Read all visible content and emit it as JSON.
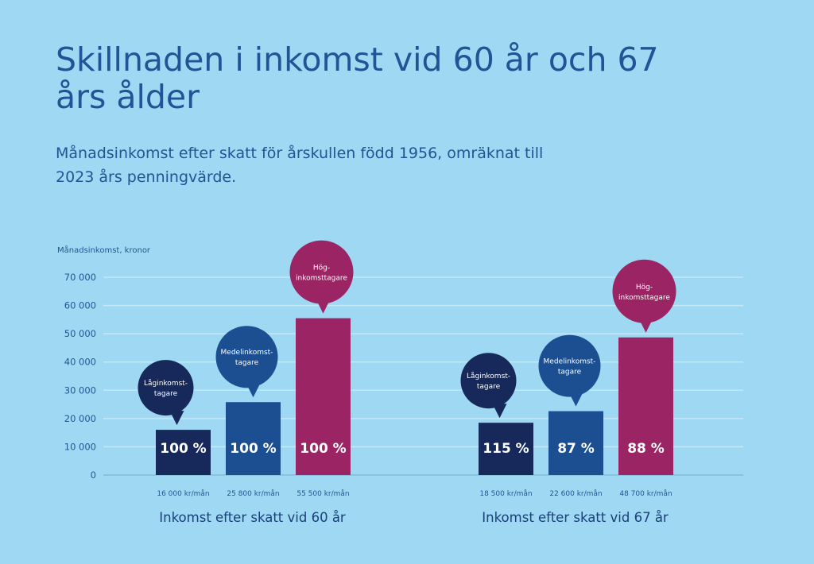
{
  "chart_data": {
    "type": "bar",
    "title": "Skillnaden i inkomst vid 60 år och 67 års ålder",
    "subtitle": "Månadsinkomst efter skatt för årskullen född 1956, omräknat till 2023 års penningvärde.",
    "ylabel": "Månadsinkomst, kronor",
    "ylim": [
      0,
      70000
    ],
    "yticks": [
      0,
      10000,
      20000,
      30000,
      40000,
      50000,
      60000,
      70000
    ],
    "ytick_labels": [
      "0",
      "10 000",
      "20 000",
      "30 000",
      "40 000",
      "50 000",
      "60 000",
      "70 000"
    ],
    "grid": true,
    "groups": [
      {
        "label": "Inkomst efter skatt vid 60 år",
        "bars": [
          {
            "series": "Låginkomst-tagare",
            "value": 16000,
            "value_label": "16 000 kr/mån",
            "percent_label": "100 %"
          },
          {
            "series": "Medelinkomst-tagare",
            "value": 25800,
            "value_label": "25 800 kr/mån",
            "percent_label": "100 %"
          },
          {
            "series": "Hög-inkomsttagare",
            "value": 55500,
            "value_label": "55 500 kr/mån",
            "percent_label": "100 %"
          }
        ]
      },
      {
        "label": "Inkomst efter skatt vid 67 år",
        "bars": [
          {
            "series": "Låginkomst-tagare",
            "value": 18500,
            "value_label": "18 500 kr/mån",
            "percent_label": "115 %"
          },
          {
            "series": "Medelinkomst-tagare",
            "value": 22600,
            "value_label": "22 600 kr/mån",
            "percent_label": "87 %"
          },
          {
            "series": "Hög-inkomsttagare",
            "value": 48700,
            "value_label": "48 700 kr/mån",
            "percent_label": "88 %"
          }
        ]
      }
    ],
    "series": [
      {
        "name": "Låginkomst-tagare",
        "bubble_lines": [
          "Låginkomst-",
          "tagare"
        ],
        "color": "#16295a"
      },
      {
        "name": "Medelinkomst-tagare",
        "bubble_lines": [
          "Medelinkomst-",
          "tagare"
        ],
        "color": "#1b4f92"
      },
      {
        "name": "Hög-inkomsttagare",
        "bubble_lines": [
          "Hög-",
          "inkomsttagare"
        ],
        "color": "#9b2564"
      }
    ],
    "colors": {
      "background": "#9fd8f2",
      "grid": "#c3e8f8",
      "text": "#1f5596"
    }
  }
}
